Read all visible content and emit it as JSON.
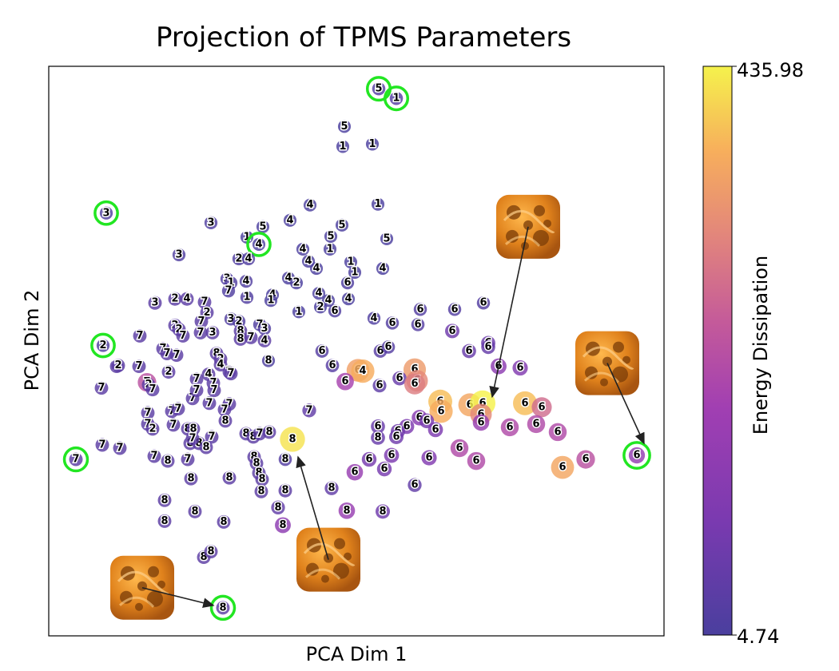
{
  "chart_data": {
    "type": "scatter",
    "title": "Projection of TPMS Parameters",
    "xlabel": "PCA Dim 1",
    "ylabel": "PCA Dim 2",
    "xlim": [
      0,
      770
    ],
    "ylim": [
      -710,
      0
    ],
    "axis_ticks": false,
    "grid": false,
    "colorbar": {
      "label": "Energy Dissipation",
      "min": 4.74,
      "max": 435.98,
      "min_label": "4.74",
      "max_label": "435.98",
      "colormap": [
        "#4a3f9e",
        "#7a3ab0",
        "#a13fb2",
        "#c45a9a",
        "#e2857c",
        "#f7ae5c",
        "#f5f24c"
      ]
    },
    "points": [
      {
        "x": 413,
        "y": -28,
        "label": "5",
        "v": 20,
        "highlight": true
      },
      {
        "x": 435,
        "y": -40,
        "label": "1",
        "v": 20,
        "highlight": true
      },
      {
        "x": 370,
        "y": -75,
        "label": "5",
        "v": 8
      },
      {
        "x": 368,
        "y": -100,
        "label": "1",
        "v": 8
      },
      {
        "x": 405,
        "y": -97,
        "label": "1",
        "v": 8
      },
      {
        "x": 412,
        "y": -172,
        "label": "1",
        "v": 8
      },
      {
        "x": 72,
        "y": -183,
        "label": "3",
        "v": 12,
        "highlight": true
      },
      {
        "x": 203,
        "y": -195,
        "label": "3",
        "v": 12
      },
      {
        "x": 268,
        "y": -200,
        "label": "5",
        "v": 8
      },
      {
        "x": 302,
        "y": -192,
        "label": "4",
        "v": 8
      },
      {
        "x": 327,
        "y": -173,
        "label": "4",
        "v": 8
      },
      {
        "x": 367,
        "y": -198,
        "label": "5",
        "v": 8
      },
      {
        "x": 353,
        "y": -212,
        "label": "5",
        "v": 8
      },
      {
        "x": 352,
        "y": -228,
        "label": "1",
        "v": 8
      },
      {
        "x": 423,
        "y": -215,
        "label": "5",
        "v": 8
      },
      {
        "x": 248,
        "y": -213,
        "label": "1",
        "v": 8
      },
      {
        "x": 263,
        "y": -222,
        "label": "4",
        "v": 8,
        "highlight": true
      },
      {
        "x": 163,
        "y": -235,
        "label": "3",
        "v": 14
      },
      {
        "x": 238,
        "y": -240,
        "label": "2",
        "v": 14
      },
      {
        "x": 250,
        "y": -240,
        "label": "4",
        "v": 14
      },
      {
        "x": 318,
        "y": -228,
        "label": "4",
        "v": 8
      },
      {
        "x": 325,
        "y": -243,
        "label": "4",
        "v": 8
      },
      {
        "x": 335,
        "y": -252,
        "label": "4",
        "v": 8
      },
      {
        "x": 378,
        "y": -244,
        "label": "1",
        "v": 8
      },
      {
        "x": 383,
        "y": -257,
        "label": "1",
        "v": 8
      },
      {
        "x": 418,
        "y": -252,
        "label": "4",
        "v": 8
      },
      {
        "x": 223,
        "y": -265,
        "label": "3",
        "v": 14
      },
      {
        "x": 228,
        "y": -270,
        "label": "1",
        "v": 14
      },
      {
        "x": 247,
        "y": -268,
        "label": "4",
        "v": 14
      },
      {
        "x": 300,
        "y": -264,
        "label": "4",
        "v": 8
      },
      {
        "x": 310,
        "y": -270,
        "label": "2",
        "v": 8
      },
      {
        "x": 374,
        "y": -270,
        "label": "6",
        "v": 12
      },
      {
        "x": 225,
        "y": -280,
        "label": "7",
        "v": 14
      },
      {
        "x": 248,
        "y": -288,
        "label": "1",
        "v": 14
      },
      {
        "x": 280,
        "y": -285,
        "label": "4",
        "v": 8
      },
      {
        "x": 278,
        "y": -292,
        "label": "1",
        "v": 8
      },
      {
        "x": 338,
        "y": -283,
        "label": "4",
        "v": 8
      },
      {
        "x": 350,
        "y": -292,
        "label": "4",
        "v": 8
      },
      {
        "x": 375,
        "y": -290,
        "label": "4",
        "v": 8
      },
      {
        "x": 133,
        "y": -295,
        "label": "3",
        "v": 30
      },
      {
        "x": 158,
        "y": -290,
        "label": "2",
        "v": 30
      },
      {
        "x": 173,
        "y": -290,
        "label": "4",
        "v": 30
      },
      {
        "x": 195,
        "y": -294,
        "label": "7",
        "v": 30
      },
      {
        "x": 198,
        "y": -307,
        "label": "2",
        "v": 30
      },
      {
        "x": 191,
        "y": -318,
        "label": "7",
        "v": 30
      },
      {
        "x": 313,
        "y": -306,
        "label": "1",
        "v": 8
      },
      {
        "x": 340,
        "y": -300,
        "label": "2",
        "v": 8
      },
      {
        "x": 358,
        "y": -305,
        "label": "6",
        "v": 12
      },
      {
        "x": 465,
        "y": -303,
        "label": "6",
        "v": 18
      },
      {
        "x": 508,
        "y": -303,
        "label": "6",
        "v": 18
      },
      {
        "x": 544,
        "y": -295,
        "label": "6",
        "v": 18
      },
      {
        "x": 228,
        "y": -315,
        "label": "3",
        "v": 14
      },
      {
        "x": 238,
        "y": -318,
        "label": "2",
        "v": 14
      },
      {
        "x": 264,
        "y": -322,
        "label": "7",
        "v": 14
      },
      {
        "x": 270,
        "y": -327,
        "label": "3",
        "v": 14
      },
      {
        "x": 407,
        "y": -314,
        "label": "4",
        "v": 12
      },
      {
        "x": 430,
        "y": -320,
        "label": "6",
        "v": 18
      },
      {
        "x": 462,
        "y": -322,
        "label": "6",
        "v": 22
      },
      {
        "x": 505,
        "y": -330,
        "label": "6",
        "v": 60
      },
      {
        "x": 550,
        "y": -345,
        "label": "6",
        "v": 55
      },
      {
        "x": 114,
        "y": -336,
        "label": "7",
        "v": 30
      },
      {
        "x": 158,
        "y": -323,
        "label": "2",
        "v": 30
      },
      {
        "x": 163,
        "y": -328,
        "label": "2",
        "v": 30
      },
      {
        "x": 168,
        "y": -336,
        "label": "7",
        "v": 30
      },
      {
        "x": 190,
        "y": -332,
        "label": "7",
        "v": 30
      },
      {
        "x": 205,
        "y": -332,
        "label": "3",
        "v": 30
      },
      {
        "x": 240,
        "y": -330,
        "label": "8",
        "v": 30
      },
      {
        "x": 240,
        "y": -340,
        "label": "8",
        "v": 30
      },
      {
        "x": 253,
        "y": -338,
        "label": "7",
        "v": 30
      },
      {
        "x": 270,
        "y": -342,
        "label": "4",
        "v": 30
      },
      {
        "x": 68,
        "y": -348,
        "label": "2",
        "v": 12,
        "highlight": true
      },
      {
        "x": 143,
        "y": -352,
        "label": "7",
        "v": 30
      },
      {
        "x": 148,
        "y": -358,
        "label": "7",
        "v": 30
      },
      {
        "x": 160,
        "y": -360,
        "label": "7",
        "v": 30
      },
      {
        "x": 210,
        "y": -358,
        "label": "8",
        "v": 30
      },
      {
        "x": 215,
        "y": -365,
        "label": "2",
        "v": 30
      },
      {
        "x": 342,
        "y": -355,
        "label": "6",
        "v": 22
      },
      {
        "x": 415,
        "y": -355,
        "label": "6",
        "v": 25
      },
      {
        "x": 425,
        "y": -350,
        "label": "6",
        "v": 22
      },
      {
        "x": 526,
        "y": -355,
        "label": "6",
        "v": 50
      },
      {
        "x": 550,
        "y": -350,
        "label": "6",
        "v": 45
      },
      {
        "x": 215,
        "y": -372,
        "label": "4",
        "v": 30
      },
      {
        "x": 226,
        "y": -381,
        "label": "7",
        "v": 30
      },
      {
        "x": 275,
        "y": -367,
        "label": "8",
        "v": 10
      },
      {
        "x": 355,
        "y": -373,
        "label": "6",
        "v": 25
      },
      {
        "x": 387,
        "y": -379,
        "label": "6",
        "v": 340
      },
      {
        "x": 393,
        "y": -380,
        "label": "4",
        "v": 360
      },
      {
        "x": 458,
        "y": -378,
        "label": "6",
        "v": 330
      },
      {
        "x": 563,
        "y": -374,
        "label": "6",
        "v": 110
      },
      {
        "x": 590,
        "y": -376,
        "label": "6",
        "v": 90
      },
      {
        "x": 85,
        "y": -374,
        "label": "7",
        "v": 30
      },
      {
        "x": 87,
        "y": -373,
        "label": "2",
        "v": 30
      },
      {
        "x": 113,
        "y": -374,
        "label": "7",
        "v": 30
      },
      {
        "x": 150,
        "y": -381,
        "label": "2",
        "v": 30
      },
      {
        "x": 185,
        "y": -390,
        "label": "7",
        "v": 30
      },
      {
        "x": 200,
        "y": -384,
        "label": "4",
        "v": 30
      },
      {
        "x": 206,
        "y": -395,
        "label": "7",
        "v": 30
      },
      {
        "x": 228,
        "y": -383,
        "label": "7",
        "v": 30
      },
      {
        "x": 371,
        "y": -393,
        "label": "6",
        "v": 160
      },
      {
        "x": 414,
        "y": -398,
        "label": "6",
        "v": 35
      },
      {
        "x": 439,
        "y": -389,
        "label": "6",
        "v": 50
      },
      {
        "x": 461,
        "y": -392,
        "label": "6",
        "v": 300
      },
      {
        "x": 458,
        "y": -396,
        "label": "6",
        "v": 280
      },
      {
        "x": 66,
        "y": -401,
        "label": "7",
        "v": 30
      },
      {
        "x": 123,
        "y": -394,
        "label": "7",
        "v": 200
      },
      {
        "x": 125,
        "y": -397,
        "label": "2",
        "v": 30
      },
      {
        "x": 130,
        "y": -403,
        "label": "7",
        "v": 30
      },
      {
        "x": 180,
        "y": -414,
        "label": "7",
        "v": 30
      },
      {
        "x": 185,
        "y": -404,
        "label": "7",
        "v": 30
      },
      {
        "x": 207,
        "y": -404,
        "label": "7",
        "v": 30
      },
      {
        "x": 226,
        "y": -421,
        "label": "7",
        "v": 30
      },
      {
        "x": 490,
        "y": -418,
        "label": "6",
        "v": 380
      },
      {
        "x": 491,
        "y": -430,
        "label": "6",
        "v": 360
      },
      {
        "x": 527,
        "y": -422,
        "label": "6",
        "v": 350
      },
      {
        "x": 543,
        "y": -420,
        "label": "6",
        "v": 436
      },
      {
        "x": 541,
        "y": -434,
        "label": "6",
        "v": 300
      },
      {
        "x": 596,
        "y": -420,
        "label": "6",
        "v": 380
      },
      {
        "x": 617,
        "y": -425,
        "label": "6",
        "v": 250
      },
      {
        "x": 124,
        "y": -432,
        "label": "7",
        "v": 30
      },
      {
        "x": 154,
        "y": -430,
        "label": "7",
        "v": 30
      },
      {
        "x": 162,
        "y": -427,
        "label": "7",
        "v": 30
      },
      {
        "x": 201,
        "y": -420,
        "label": "7",
        "v": 30
      },
      {
        "x": 220,
        "y": -428,
        "label": "7",
        "v": 30
      },
      {
        "x": 221,
        "y": -442,
        "label": "8",
        "v": 30
      },
      {
        "x": 326,
        "y": -429,
        "label": "7",
        "v": 40
      },
      {
        "x": 464,
        "y": -438,
        "label": "6",
        "v": 100
      },
      {
        "x": 541,
        "y": -444,
        "label": "6",
        "v": 130
      },
      {
        "x": 577,
        "y": -450,
        "label": "6",
        "v": 180
      },
      {
        "x": 610,
        "y": -446,
        "label": "6",
        "v": 180
      },
      {
        "x": 637,
        "y": -456,
        "label": "6",
        "v": 180
      },
      {
        "x": 124,
        "y": -446,
        "label": "7",
        "v": 30
      },
      {
        "x": 130,
        "y": -452,
        "label": "2",
        "v": 30
      },
      {
        "x": 156,
        "y": -447,
        "label": "7",
        "v": 30
      },
      {
        "x": 174,
        "y": -452,
        "label": "8",
        "v": 30
      },
      {
        "x": 181,
        "y": -452,
        "label": "8",
        "v": 30
      },
      {
        "x": 448,
        "y": -449,
        "label": "6",
        "v": 80
      },
      {
        "x": 473,
        "y": -442,
        "label": "6",
        "v": 70
      },
      {
        "x": 484,
        "y": -453,
        "label": "6",
        "v": 80
      },
      {
        "x": 437,
        "y": -455,
        "label": "6",
        "v": 60
      },
      {
        "x": 412,
        "y": -449,
        "label": "6",
        "v": 50
      },
      {
        "x": 412,
        "y": -463,
        "label": "8",
        "v": 50
      },
      {
        "x": 435,
        "y": -462,
        "label": "6",
        "v": 60
      },
      {
        "x": 247,
        "y": -458,
        "label": "8",
        "v": 30
      },
      {
        "x": 256,
        "y": -462,
        "label": "8",
        "v": 30
      },
      {
        "x": 264,
        "y": -458,
        "label": "7",
        "v": 30
      },
      {
        "x": 276,
        "y": -456,
        "label": "8",
        "v": 30
      },
      {
        "x": 305,
        "y": -465,
        "label": "8",
        "v": 420
      },
      {
        "x": 67,
        "y": -472,
        "label": "7",
        "v": 30
      },
      {
        "x": 89,
        "y": -476,
        "label": "7",
        "v": 30
      },
      {
        "x": 177,
        "y": -470,
        "label": "8",
        "v": 30
      },
      {
        "x": 188,
        "y": -470,
        "label": "8",
        "v": 30
      },
      {
        "x": 180,
        "y": -464,
        "label": "7",
        "v": 30
      },
      {
        "x": 204,
        "y": -462,
        "label": "7",
        "v": 30
      },
      {
        "x": 197,
        "y": -475,
        "label": "8",
        "v": 30
      },
      {
        "x": 514,
        "y": -476,
        "label": "6",
        "v": 180
      },
      {
        "x": 34,
        "y": -490,
        "label": "7",
        "v": 30,
        "highlight": true
      },
      {
        "x": 132,
        "y": -486,
        "label": "7",
        "v": 30
      },
      {
        "x": 149,
        "y": -492,
        "label": "8",
        "v": 30
      },
      {
        "x": 174,
        "y": -490,
        "label": "7",
        "v": 30
      },
      {
        "x": 257,
        "y": -487,
        "label": "8",
        "v": 30
      },
      {
        "x": 260,
        "y": -495,
        "label": "8",
        "v": 30
      },
      {
        "x": 296,
        "y": -490,
        "label": "8",
        "v": 20
      },
      {
        "x": 401,
        "y": -490,
        "label": "6",
        "v": 70
      },
      {
        "x": 429,
        "y": -485,
        "label": "6",
        "v": 80
      },
      {
        "x": 476,
        "y": -488,
        "label": "6",
        "v": 90
      },
      {
        "x": 535,
        "y": -492,
        "label": "6",
        "v": 180
      },
      {
        "x": 643,
        "y": -500,
        "label": "6",
        "v": 350
      },
      {
        "x": 672,
        "y": -490,
        "label": "6",
        "v": 200
      },
      {
        "x": 736,
        "y": -485,
        "label": "6",
        "v": 120,
        "highlight": true
      },
      {
        "x": 263,
        "y": -507,
        "label": "8",
        "v": 30
      },
      {
        "x": 267,
        "y": -515,
        "label": "8",
        "v": 30
      },
      {
        "x": 383,
        "y": -506,
        "label": "6",
        "v": 130
      },
      {
        "x": 420,
        "y": -502,
        "label": "6",
        "v": 70
      },
      {
        "x": 178,
        "y": -514,
        "label": "8",
        "v": 30
      },
      {
        "x": 226,
        "y": -513,
        "label": "8",
        "v": 30
      },
      {
        "x": 266,
        "y": -530,
        "label": "8",
        "v": 30
      },
      {
        "x": 296,
        "y": -529,
        "label": "8",
        "v": 30
      },
      {
        "x": 354,
        "y": -526,
        "label": "8",
        "v": 40
      },
      {
        "x": 458,
        "y": -522,
        "label": "6",
        "v": 40
      },
      {
        "x": 145,
        "y": -541,
        "label": "8",
        "v": 30
      },
      {
        "x": 183,
        "y": -555,
        "label": "8",
        "v": 30
      },
      {
        "x": 287,
        "y": -550,
        "label": "8",
        "v": 40
      },
      {
        "x": 373,
        "y": -554,
        "label": "8",
        "v": 130
      },
      {
        "x": 418,
        "y": -555,
        "label": "8",
        "v": 60
      },
      {
        "x": 145,
        "y": -567,
        "label": "8",
        "v": 30
      },
      {
        "x": 219,
        "y": -568,
        "label": "8",
        "v": 30
      },
      {
        "x": 293,
        "y": -572,
        "label": "8",
        "v": 110
      },
      {
        "x": 194,
        "y": -612,
        "label": "8",
        "v": 30
      },
      {
        "x": 203,
        "y": -605,
        "label": "8",
        "v": 30
      },
      {
        "x": 218,
        "y": -675,
        "label": "8",
        "v": 30,
        "highlight": true
      }
    ],
    "annotations": [
      {
        "from": [
          600,
          -200
        ],
        "to": [
          555,
          -412
        ],
        "image": "tpms-structure-1"
      },
      {
        "from": [
          699,
          -370
        ],
        "to": [
          745,
          -470
        ],
        "image": "tpms-structure-2"
      },
      {
        "from": [
          350,
          -615
        ],
        "to": [
          312,
          -487
        ],
        "image": "tpms-structure-3"
      },
      {
        "from": [
          117,
          -650
        ],
        "to": [
          206,
          -672
        ],
        "image": "tpms-structure-4"
      }
    ]
  }
}
